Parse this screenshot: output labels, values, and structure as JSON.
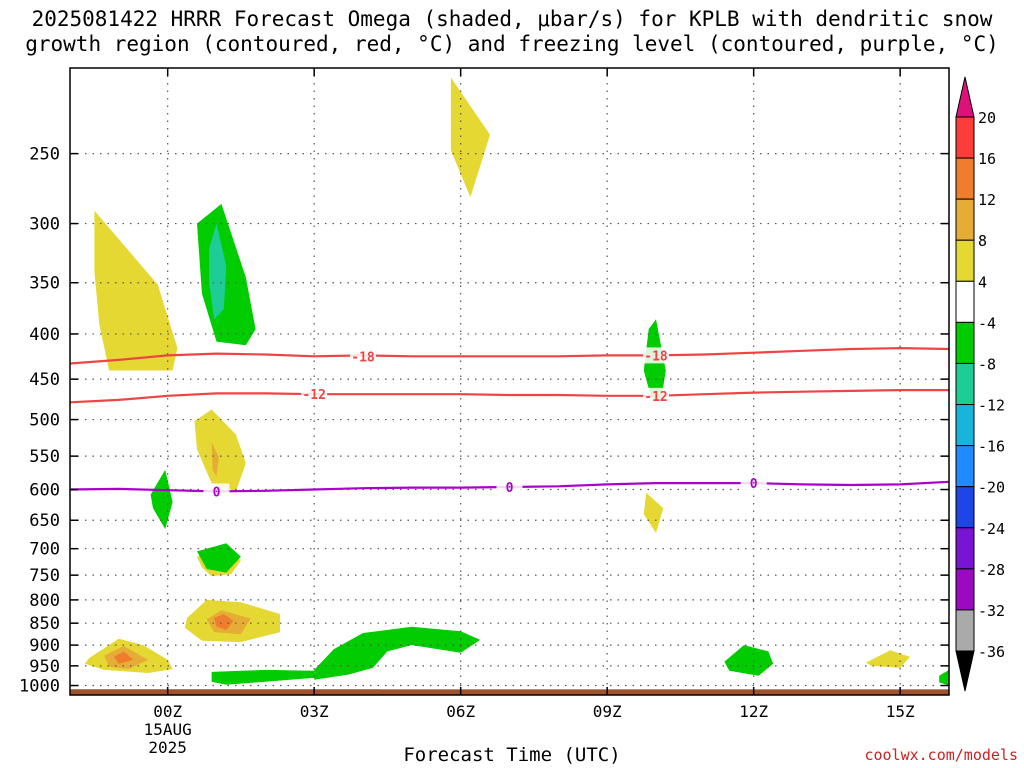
{
  "title_line1": "2025081422 HRRR Forecast Omega (shaded, μbar/s) for KPLB with dendritic snow",
  "title_line2": "growth region (contoured, red, °C) and freezing level (contoured, purple, °C)",
  "xlabel": "Forecast Time (UTC)",
  "credit": "coolwx.com/models",
  "chart_data": {
    "type": "heatmap",
    "title": "2025081422 HRRR Forecast Omega (shaded, μbar/s) for KPLB with dendritic snow growth region (contoured, red, °C) and freezing level (contoured, purple, °C)",
    "xlabel": "Forecast Time (UTC)",
    "ylabel": "",
    "x_units": "hours from 00Z 15AUG2025",
    "xlim": [
      -2,
      16
    ],
    "ylim_hpa": [
      1025,
      200
    ],
    "y_log_scale": true,
    "grid": true,
    "x_ticks": [
      {
        "x": 0,
        "label": "00Z",
        "sublabel1": "15AUG",
        "sublabel2": "2025"
      },
      {
        "x": 3,
        "label": "03Z"
      },
      {
        "x": 6,
        "label": "06Z"
      },
      {
        "x": 9,
        "label": "09Z"
      },
      {
        "x": 12,
        "label": "12Z"
      },
      {
        "x": 15,
        "label": "15Z"
      }
    ],
    "y_ticks": [
      250,
      300,
      350,
      400,
      450,
      500,
      550,
      600,
      650,
      700,
      750,
      800,
      850,
      900,
      950,
      1000
    ],
    "colorbar": {
      "levels": [
        "20",
        "16",
        "12",
        "8",
        "4",
        "-4",
        "-8",
        "-12",
        "-16",
        "-20",
        "-24",
        "-28",
        "-32",
        "-36"
      ],
      "colors": [
        "#ff3c3c",
        "#f07d2d",
        "#e6ad36",
        "#e6d832",
        "#ffffff",
        "#00cc00",
        "#1ecc96",
        "#18b4dc",
        "#1e8cff",
        "#1e46e6",
        "#7814d2",
        "#9b0ac3",
        "#aaaaaa"
      ],
      "top_arrow_color": "#e0107a",
      "bottom_arrow_color": "#000000"
    },
    "contours": [
      {
        "name": "-18",
        "color": "#ee4444",
        "points": [
          [
            -2,
            432
          ],
          [
            -1,
            428
          ],
          [
            0,
            423
          ],
          [
            1,
            421
          ],
          [
            2,
            422
          ],
          [
            3,
            424
          ],
          [
            4,
            423
          ],
          [
            5,
            424
          ],
          [
            6,
            424
          ],
          [
            7,
            424
          ],
          [
            8,
            424
          ],
          [
            9,
            423
          ],
          [
            10,
            423
          ],
          [
            11,
            422
          ],
          [
            12,
            420
          ],
          [
            13,
            418
          ],
          [
            14,
            416
          ],
          [
            15,
            415
          ],
          [
            16,
            416
          ]
        ],
        "labels": [
          [
            4,
            424
          ],
          [
            10,
            423
          ]
        ]
      },
      {
        "name": "-12",
        "color": "#ee4444",
        "points": [
          [
            -2,
            478
          ],
          [
            -1,
            475
          ],
          [
            0,
            470
          ],
          [
            1,
            467
          ],
          [
            2,
            467
          ],
          [
            3,
            468
          ],
          [
            4,
            468
          ],
          [
            5,
            468
          ],
          [
            6,
            468
          ],
          [
            7,
            469
          ],
          [
            8,
            469
          ],
          [
            9,
            470
          ],
          [
            10,
            470
          ],
          [
            11,
            468
          ],
          [
            12,
            466
          ],
          [
            13,
            465
          ],
          [
            14,
            464
          ],
          [
            15,
            463
          ],
          [
            16,
            463
          ]
        ],
        "labels": [
          [
            3,
            468
          ],
          [
            10,
            470
          ]
        ]
      },
      {
        "name": "0",
        "color": "#aa00cc",
        "points": [
          [
            -2,
            600
          ],
          [
            -1,
            599
          ],
          [
            0,
            601
          ],
          [
            1,
            603
          ],
          [
            2,
            602
          ],
          [
            3,
            600
          ],
          [
            4,
            598
          ],
          [
            5,
            597
          ],
          [
            6,
            597
          ],
          [
            7,
            596
          ],
          [
            8,
            595
          ],
          [
            9,
            592
          ],
          [
            10,
            590
          ],
          [
            11,
            590
          ],
          [
            12,
            590
          ],
          [
            13,
            592
          ],
          [
            14,
            593
          ],
          [
            15,
            592
          ],
          [
            16,
            588
          ]
        ],
        "labels": [
          [
            1,
            603
          ],
          [
            7,
            596
          ],
          [
            12,
            590
          ]
        ]
      }
    ],
    "omega_regions": [
      {
        "value": 4,
        "color": "#e6d832",
        "points": [
          [
            -1.5,
            290
          ],
          [
            -0.2,
            352
          ],
          [
            0.2,
            415
          ],
          [
            0.1,
            440
          ],
          [
            -1.2,
            440
          ],
          [
            -1.4,
            390
          ],
          [
            -1.5,
            340
          ]
        ]
      },
      {
        "value": 4,
        "color": "#e6d832",
        "points": [
          [
            5.8,
            205
          ],
          [
            6.6,
            238
          ],
          [
            6.2,
            280
          ],
          [
            5.8,
            248
          ],
          [
            5.8,
            225
          ]
        ]
      },
      {
        "value": 4,
        "color": "#e6d832",
        "points": [
          [
            0.55,
            502
          ],
          [
            0.9,
            487
          ],
          [
            1.4,
            520
          ],
          [
            1.6,
            560
          ],
          [
            1.4,
            603
          ],
          [
            0.9,
            590
          ],
          [
            0.6,
            540
          ]
        ]
      },
      {
        "value": 4,
        "color": "#e6d832",
        "points": [
          [
            9.8,
            605
          ],
          [
            10.15,
            630
          ],
          [
            10.0,
            672
          ],
          [
            9.75,
            640
          ]
        ]
      },
      {
        "value": 4,
        "color": "#e6d832",
        "points": [
          [
            0.6,
            715
          ],
          [
            1.0,
            695
          ],
          [
            1.5,
            722
          ],
          [
            1.3,
            748
          ],
          [
            0.9,
            752
          ],
          [
            0.7,
            735
          ]
        ]
      },
      {
        "value": 4,
        "color": "#e6d832",
        "points": [
          [
            0.4,
            838
          ],
          [
            0.8,
            800
          ],
          [
            1.5,
            805
          ],
          [
            2.3,
            830
          ],
          [
            2.3,
            870
          ],
          [
            1.5,
            893
          ],
          [
            0.7,
            890
          ],
          [
            0.35,
            860
          ]
        ]
      },
      {
        "value": 4,
        "color": "#e6d832",
        "points": [
          [
            -1.6,
            930
          ],
          [
            -1.0,
            885
          ],
          [
            -0.5,
            900
          ],
          [
            0.0,
            935
          ],
          [
            0.1,
            958
          ],
          [
            -0.4,
            968
          ],
          [
            -1.3,
            960
          ],
          [
            -1.7,
            945
          ]
        ]
      },
      {
        "value": 4,
        "color": "#e6d832",
        "points": [
          [
            14.3,
            942
          ],
          [
            14.8,
            912
          ],
          [
            15.2,
            928
          ],
          [
            15.0,
            955
          ],
          [
            14.4,
            950
          ]
        ]
      },
      {
        "value": 8,
        "color": "#e6ad36",
        "points": [
          [
            0.9,
            530
          ],
          [
            1.05,
            552
          ],
          [
            1.0,
            580
          ],
          [
            0.92,
            570
          ]
        ]
      },
      {
        "value": 8,
        "color": "#e6ad36",
        "points": [
          [
            0.8,
            842
          ],
          [
            1.1,
            822
          ],
          [
            1.7,
            840
          ],
          [
            1.5,
            875
          ],
          [
            0.95,
            870
          ]
        ]
      },
      {
        "value": 8,
        "color": "#e6ad36",
        "points": [
          [
            -1.3,
            925
          ],
          [
            -0.9,
            902
          ],
          [
            -0.4,
            935
          ],
          [
            -0.8,
            958
          ],
          [
            -1.2,
            952
          ]
        ]
      },
      {
        "value": 12,
        "color": "#f07d2d",
        "points": [
          [
            0.95,
            838
          ],
          [
            1.15,
            830
          ],
          [
            1.35,
            845
          ],
          [
            1.2,
            865
          ],
          [
            1.0,
            858
          ]
        ]
      },
      {
        "value": 12,
        "color": "#f07d2d",
        "points": [
          [
            -1.1,
            928
          ],
          [
            -0.9,
            915
          ],
          [
            -0.7,
            935
          ],
          [
            -1.0,
            945
          ]
        ]
      },
      {
        "value": -4,
        "color": "#00cc00",
        "points": [
          [
            0.6,
            300
          ],
          [
            1.1,
            285
          ],
          [
            1.6,
            345
          ],
          [
            1.8,
            395
          ],
          [
            1.6,
            412
          ],
          [
            1.0,
            408
          ],
          [
            0.7,
            360
          ]
        ]
      },
      {
        "value": -4,
        "color": "#00cc00",
        "points": [
          [
            9.75,
            440
          ],
          [
            9.85,
            395
          ],
          [
            10.0,
            385
          ],
          [
            10.2,
            440
          ],
          [
            10.1,
            477
          ],
          [
            9.9,
            472
          ]
        ]
      },
      {
        "value": -4,
        "color": "#00cc00",
        "points": [
          [
            -0.35,
            608
          ],
          [
            -0.05,
            570
          ],
          [
            0.1,
            620
          ],
          [
            -0.05,
            665
          ],
          [
            -0.3,
            630
          ]
        ]
      },
      {
        "value": -4,
        "color": "#00cc00",
        "points": [
          [
            0.6,
            705
          ],
          [
            1.2,
            690
          ],
          [
            1.5,
            715
          ],
          [
            1.2,
            745
          ],
          [
            0.8,
            738
          ]
        ]
      },
      {
        "value": -4,
        "color": "#00cc00",
        "points": [
          [
            3.0,
            960
          ],
          [
            3.4,
            910
          ],
          [
            4.0,
            872
          ],
          [
            5.0,
            858
          ],
          [
            6.0,
            868
          ],
          [
            6.4,
            888
          ],
          [
            6.0,
            918
          ],
          [
            5.0,
            900
          ],
          [
            4.5,
            915
          ],
          [
            4.2,
            955
          ],
          [
            3.7,
            972
          ],
          [
            3.0,
            985
          ]
        ]
      },
      {
        "value": -4,
        "color": "#00cc00",
        "points": [
          [
            0.9,
            965
          ],
          [
            2.0,
            960
          ],
          [
            3.0,
            962
          ],
          [
            3.2,
            978
          ],
          [
            2.0,
            990
          ],
          [
            1.2,
            998
          ],
          [
            0.9,
            990
          ]
        ]
      },
      {
        "value": -4,
        "color": "#00cc00",
        "points": [
          [
            11.4,
            940
          ],
          [
            11.8,
            900
          ],
          [
            12.3,
            915
          ],
          [
            12.4,
            945
          ],
          [
            12.1,
            975
          ],
          [
            11.5,
            962
          ]
        ]
      },
      {
        "value": -4,
        "color": "#00cc00",
        "points": [
          [
            15.8,
            975
          ],
          [
            16.0,
            960
          ],
          [
            16.0,
            1000
          ],
          [
            15.8,
            992
          ]
        ]
      },
      {
        "value": -8,
        "color": "#1ecc96",
        "points": [
          [
            0.85,
            320
          ],
          [
            1.0,
            300
          ],
          [
            1.2,
            335
          ],
          [
            1.15,
            375
          ],
          [
            0.95,
            385
          ],
          [
            0.85,
            350
          ]
        ]
      }
    ],
    "ground": {
      "color": "#a0522d",
      "top_hpa": 1010
    }
  }
}
